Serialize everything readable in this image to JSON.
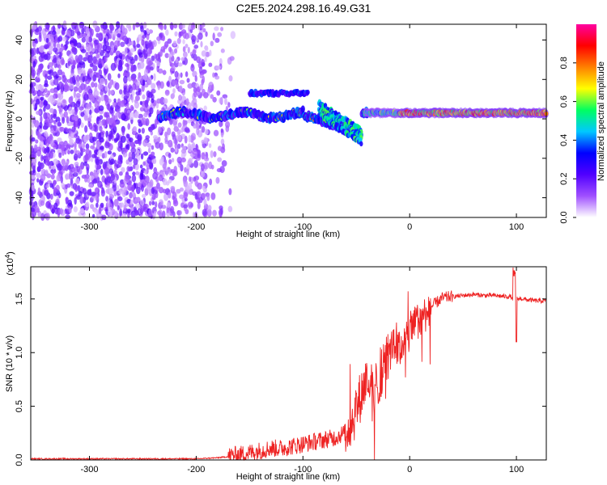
{
  "title": "C2E5.2024.298.16.49.G31",
  "chart_data": [
    {
      "type": "heatmap",
      "xlabel": "Height of straight line (km)",
      "ylabel": "Frequency (Hz)",
      "xlim": [
        -355,
        128
      ],
      "ylim": [
        -50,
        48
      ],
      "xticks": [
        -300,
        -200,
        -100,
        0,
        100
      ],
      "yticks": [
        -40,
        -20,
        0,
        20,
        40
      ],
      "colorbar": {
        "label": "Normalized spectral amplitude",
        "range": [
          0,
          1
        ],
        "ticks": [
          "0.0",
          "0.2",
          "0.4",
          "0.6",
          "0.8"
        ],
        "colors": [
          "#ffffff",
          "#a050ff",
          "#5000ff",
          "#0000ff",
          "#00c8ff",
          "#00ff60",
          "#ffff00",
          "#ff8000",
          "#ff0000",
          "#ff00a0"
        ]
      },
      "features": [
        {
          "name": "",
          "x_range": [
            -355,
            -175
          ],
          "y_range": [
            -50,
            48
          ],
          "amplitude": 0.15
        },
        {
          "name": "",
          "x_range": [
            -235,
            -40
          ],
          "center_y": 2,
          "amplitude": 0.4
        },
        {
          "name": "",
          "x_range": [
            -150,
            -95
          ],
          "center_y": 13,
          "amplitude": 0.25
        },
        {
          "name": "",
          "x_range": [
            -80,
            -45
          ],
          "center_y": -8,
          "amplitude": 0.45
        },
        {
          "name": "",
          "x_range": [
            -40,
            128
          ],
          "center_y": 3,
          "amplitude": 0.75
        }
      ]
    },
    {
      "type": "line",
      "xlabel": "Height of straight line (km)",
      "ylabel": "SNR (10 * v/v)",
      "y_multiplier": "(x10",
      "y_multiplier_exp": "4",
      "xlim": [
        -355,
        128
      ],
      "ylim": [
        0,
        1.8
      ],
      "xticks": [
        -300,
        -200,
        -100,
        0,
        100
      ],
      "yticks": [
        "0.0",
        "0.5",
        "1.0",
        "1.5"
      ],
      "series": [
        {
          "color": "#ee2222",
          "x": [
            -355,
            -300,
            -250,
            -200,
            -180,
            -160,
            -150,
            -140,
            -130,
            -120,
            -110,
            -100,
            -90,
            -80,
            -70,
            -60,
            -55,
            -50,
            -45,
            -40,
            -35,
            -30,
            -25,
            -20,
            -15,
            -10,
            -5,
            0,
            5,
            10,
            15,
            20,
            25,
            30,
            40,
            50,
            60,
            70,
            80,
            90,
            95,
            98,
            100,
            105,
            110,
            120,
            128
          ],
          "y": [
            0.01,
            0.01,
            0.01,
            0.01,
            0.02,
            0.04,
            0.06,
            0.08,
            0.1,
            0.1,
            0.12,
            0.14,
            0.16,
            0.18,
            0.2,
            0.25,
            0.3,
            0.45,
            0.6,
            0.75,
            0.55,
            0.7,
            0.85,
            0.95,
            1.05,
            1.0,
            1.1,
            1.15,
            1.25,
            1.3,
            1.35,
            1.42,
            1.46,
            1.5,
            1.52,
            1.53,
            1.54,
            1.53,
            1.53,
            1.52,
            1.52,
            1.45,
            1.5,
            1.5,
            1.49,
            1.48,
            1.48
          ]
        }
      ]
    }
  ]
}
